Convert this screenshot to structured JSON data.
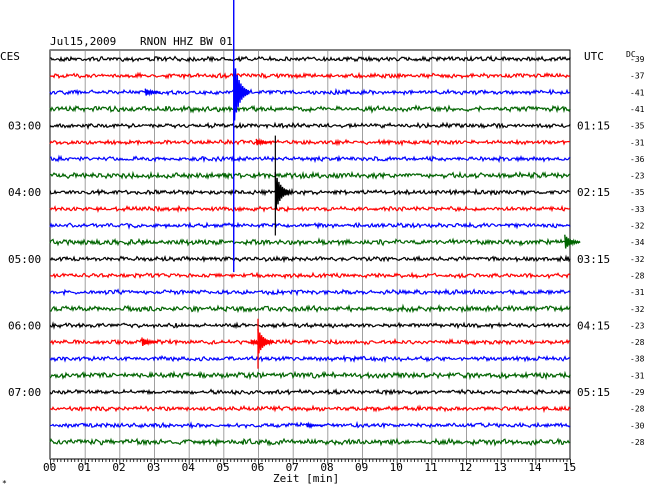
{
  "header": {
    "date": "Jul15,2009",
    "station": "RNON HHZ BW 01",
    "left_zone": "CES",
    "right_zone": "UTC",
    "dc_label": "DC"
  },
  "chart_data": {
    "type": "line",
    "title": "Jul15,2009   RNON HHZ BW 01",
    "xlabel": "Zeit [min]",
    "xlim": [
      0,
      15
    ],
    "x_ticks": [
      "00",
      "01",
      "02",
      "03",
      "04",
      "05",
      "06",
      "07",
      "08",
      "09",
      "10",
      "11",
      "12",
      "13",
      "14",
      "15"
    ],
    "trace_count": 24,
    "trace_minutes_per_line": 15,
    "trace_colors": [
      "#000000",
      "#ff0000",
      "#0000ff",
      "#006400"
    ],
    "left_time_labels": [
      {
        "trace": 4,
        "label": "03:00"
      },
      {
        "trace": 8,
        "label": "04:00"
      },
      {
        "trace": 12,
        "label": "05:00"
      },
      {
        "trace": 16,
        "label": "06:00"
      },
      {
        "trace": 20,
        "label": "07:00"
      }
    ],
    "right_time_labels": [
      {
        "trace": 4,
        "label": "01:15"
      },
      {
        "trace": 8,
        "label": "02:15"
      },
      {
        "trace": 12,
        "label": "03:15"
      },
      {
        "trace": 16,
        "label": "04:15"
      },
      {
        "trace": 20,
        "label": "05:15"
      }
    ],
    "dc_offsets": [
      -39,
      -37,
      -41,
      -41,
      -35,
      -31,
      -36,
      -23,
      -35,
      -33,
      -32,
      -34,
      -32,
      -28,
      -31,
      -32,
      -23,
      -28,
      -38,
      -31,
      -29,
      -28,
      -30,
      -28
    ],
    "events": [
      {
        "trace": 2,
        "minute": 2.75,
        "amplitude": 0.45
      },
      {
        "trace": 2,
        "minute": 5.3,
        "amplitude": 4.0
      },
      {
        "trace": 5,
        "minute": 5.95,
        "amplitude": 0.4
      },
      {
        "trace": 8,
        "minute": 6.5,
        "amplitude": 2.4
      },
      {
        "trace": 11,
        "minute": 14.85,
        "amplitude": 0.9
      },
      {
        "trace": 17,
        "minute": 2.65,
        "amplitude": 0.55
      },
      {
        "trace": 17,
        "minute": 6.0,
        "amplitude": 1.6
      },
      {
        "trace": 17,
        "minute": 5.8,
        "amplitude": 0.3
      },
      {
        "trace": 22,
        "minute": 7.4,
        "amplitude": 0.25
      }
    ],
    "big_spike": {
      "trace": 2,
      "minute": 5.3,
      "top_trace": -3.6,
      "bottom_trace": 12.8
    }
  },
  "footer_mark": "*"
}
